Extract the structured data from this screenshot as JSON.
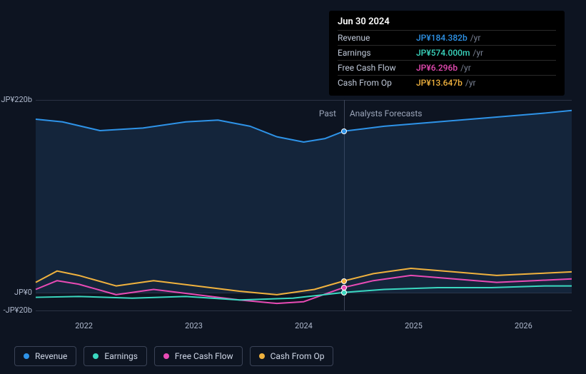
{
  "chart": {
    "type": "line",
    "background_color": "#0d1421",
    "grid_color": "#2a3244",
    "text_color": "#aeb8cc",
    "ylim": [
      -20,
      220
    ],
    "y_ticks": [
      {
        "v": 220,
        "label": "JP¥220b"
      },
      {
        "v": 0,
        "label": "JP¥0"
      },
      {
        "v": -20,
        "label": "-JP¥20b"
      }
    ],
    "x_years": [
      "2022",
      "2023",
      "2024",
      "2025",
      "2026"
    ],
    "now_x": 0.575,
    "past_label": "Past",
    "forecast_label": "Analysts Forecasts",
    "area_fill": "rgba(35,70,110,0.35)",
    "series": [
      {
        "name": "Revenue",
        "color": "#2e93e8",
        "fill": true,
        "points": [
          {
            "x": 0.0,
            "y": 198
          },
          {
            "x": 0.05,
            "y": 195
          },
          {
            "x": 0.12,
            "y": 185
          },
          {
            "x": 0.2,
            "y": 188
          },
          {
            "x": 0.28,
            "y": 195
          },
          {
            "x": 0.34,
            "y": 197
          },
          {
            "x": 0.4,
            "y": 190
          },
          {
            "x": 0.45,
            "y": 178
          },
          {
            "x": 0.5,
            "y": 172
          },
          {
            "x": 0.54,
            "y": 176
          },
          {
            "x": 0.575,
            "y": 184.382
          },
          {
            "x": 0.65,
            "y": 190
          },
          {
            "x": 0.75,
            "y": 195
          },
          {
            "x": 0.85,
            "y": 200
          },
          {
            "x": 0.95,
            "y": 205
          },
          {
            "x": 1.0,
            "y": 208
          }
        ]
      },
      {
        "name": "Cash From Op",
        "color": "#f0b23e",
        "fill": false,
        "points": [
          {
            "x": 0.0,
            "y": 12
          },
          {
            "x": 0.04,
            "y": 25
          },
          {
            "x": 0.08,
            "y": 20
          },
          {
            "x": 0.15,
            "y": 8
          },
          {
            "x": 0.22,
            "y": 14
          },
          {
            "x": 0.3,
            "y": 8
          },
          {
            "x": 0.38,
            "y": 2
          },
          {
            "x": 0.45,
            "y": -2
          },
          {
            "x": 0.52,
            "y": 4
          },
          {
            "x": 0.575,
            "y": 13.647
          },
          {
            "x": 0.63,
            "y": 22
          },
          {
            "x": 0.7,
            "y": 28
          },
          {
            "x": 0.78,
            "y": 24
          },
          {
            "x": 0.86,
            "y": 20
          },
          {
            "x": 0.93,
            "y": 22
          },
          {
            "x": 1.0,
            "y": 24
          }
        ]
      },
      {
        "name": "Free Cash Flow",
        "color": "#e84bb5",
        "fill": false,
        "points": [
          {
            "x": 0.0,
            "y": 4
          },
          {
            "x": 0.04,
            "y": 14
          },
          {
            "x": 0.08,
            "y": 10
          },
          {
            "x": 0.15,
            "y": -2
          },
          {
            "x": 0.22,
            "y": 4
          },
          {
            "x": 0.3,
            "y": -2
          },
          {
            "x": 0.38,
            "y": -8
          },
          {
            "x": 0.45,
            "y": -12
          },
          {
            "x": 0.5,
            "y": -10
          },
          {
            "x": 0.575,
            "y": 6.296
          },
          {
            "x": 0.63,
            "y": 14
          },
          {
            "x": 0.7,
            "y": 20
          },
          {
            "x": 0.78,
            "y": 16
          },
          {
            "x": 0.86,
            "y": 12
          },
          {
            "x": 0.93,
            "y": 14
          },
          {
            "x": 1.0,
            "y": 16
          }
        ]
      },
      {
        "name": "Earnings",
        "color": "#3ad8c0",
        "fill": false,
        "points": [
          {
            "x": 0.0,
            "y": -5
          },
          {
            "x": 0.08,
            "y": -4
          },
          {
            "x": 0.18,
            "y": -6
          },
          {
            "x": 0.28,
            "y": -4
          },
          {
            "x": 0.38,
            "y": -8
          },
          {
            "x": 0.48,
            "y": -6
          },
          {
            "x": 0.575,
            "y": 0.574
          },
          {
            "x": 0.65,
            "y": 4
          },
          {
            "x": 0.75,
            "y": 6
          },
          {
            "x": 0.85,
            "y": 6
          },
          {
            "x": 0.95,
            "y": 8
          },
          {
            "x": 1.0,
            "y": 8
          }
        ]
      }
    ],
    "markers": [
      {
        "x": 0.575,
        "y": 184.382,
        "color": "#2e93e8"
      },
      {
        "x": 0.575,
        "y": 13.647,
        "color": "#f0b23e"
      },
      {
        "x": 0.575,
        "y": 6.296,
        "color": "#e84bb5"
      },
      {
        "x": 0.575,
        "y": 0.574,
        "color": "#3ad8c0"
      }
    ]
  },
  "tooltip": {
    "title": "Jun 30 2024",
    "unit": "/yr",
    "rows": [
      {
        "label": "Revenue",
        "value": "JP¥184.382b",
        "color": "#2e93e8"
      },
      {
        "label": "Earnings",
        "value": "JP¥574.000m",
        "color": "#3ad8c0"
      },
      {
        "label": "Free Cash Flow",
        "value": "JP¥6.296b",
        "color": "#e84bb5"
      },
      {
        "label": "Cash From Op",
        "value": "JP¥13.647b",
        "color": "#f0b23e"
      }
    ]
  },
  "legend": {
    "items": [
      {
        "label": "Revenue",
        "color": "#2e93e8"
      },
      {
        "label": "Earnings",
        "color": "#3ad8c0"
      },
      {
        "label": "Free Cash Flow",
        "color": "#e84bb5"
      },
      {
        "label": "Cash From Op",
        "color": "#f0b23e"
      }
    ]
  }
}
